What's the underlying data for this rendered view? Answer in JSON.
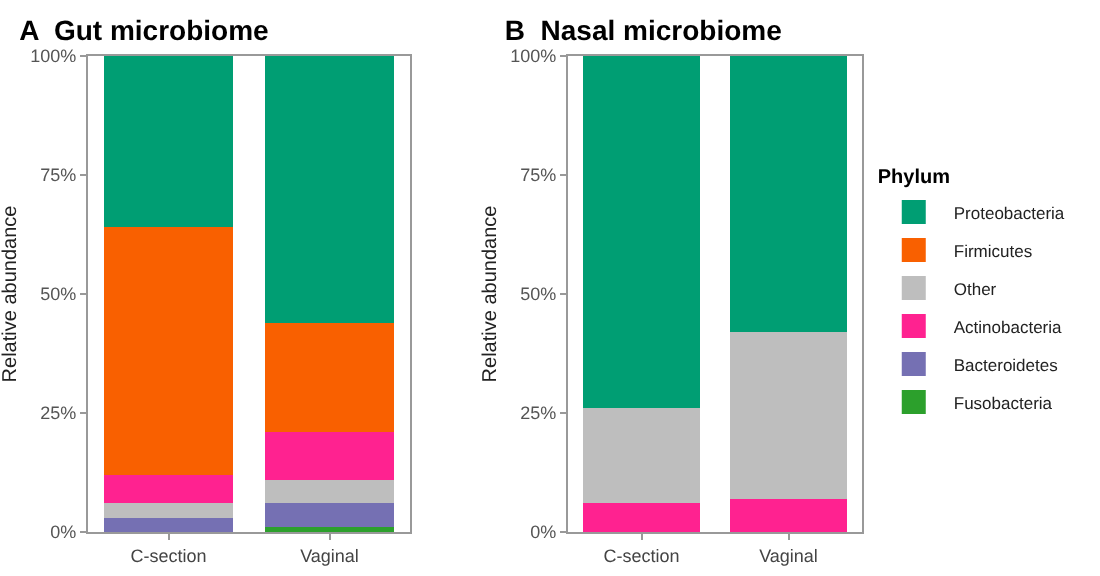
{
  "chart_data": [
    {
      "type": "bar",
      "title": "A  Gut microbiome",
      "ylabel": "Relative abundance",
      "categories": [
        "C-section",
        "Vaginal"
      ],
      "stacked": true,
      "ylim": [
        0,
        100
      ],
      "yticks": [
        {
          "value": 0,
          "label": "0%"
        },
        {
          "value": 25,
          "label": "25%"
        },
        {
          "value": 50,
          "label": "50%"
        },
        {
          "value": 75,
          "label": "75%"
        },
        {
          "value": 100,
          "label": "100%"
        }
      ],
      "grid": false,
      "legend": false,
      "series": [
        {
          "color": "#2ca02c",
          "values": [
            0,
            1
          ]
        },
        {
          "color": "#7570b3",
          "values": [
            3,
            5
          ]
        },
        {
          "color": "#bebebe",
          "values": [
            3,
            5
          ]
        },
        {
          "color": "#ff2290",
          "values": [
            6,
            10
          ]
        },
        {
          "color": "#f96000",
          "values": [
            52,
            23
          ]
        },
        {
          "color": "#009e73",
          "values": [
            36,
            56
          ]
        }
      ]
    },
    {
      "type": "bar",
      "title": "B  Nasal microbiome",
      "ylabel": "Relative abundance",
      "legend_title": "Phylum",
      "categories": [
        "C-section",
        "Vaginal"
      ],
      "stacked": true,
      "ylim": [
        0,
        100
      ],
      "yticks": [
        {
          "value": 0,
          "label": "0%"
        },
        {
          "value": 25,
          "label": "25%"
        },
        {
          "value": 50,
          "label": "50%"
        },
        {
          "value": 75,
          "label": "75%"
        },
        {
          "value": 100,
          "label": "100%"
        }
      ],
      "grid": false,
      "legend": "right",
      "series": [
        {
          "name": "Fusobacteria",
          "color": "#2ca02c",
          "values": [
            0,
            0
          ]
        },
        {
          "name": "Bacteroidetes",
          "color": "#7570b3",
          "values": [
            0,
            0
          ]
        },
        {
          "name": "Actinobacteria",
          "color": "#ff2290",
          "values": [
            6,
            7
          ]
        },
        {
          "name": "Other",
          "color": "#bebebe",
          "values": [
            20,
            35
          ]
        },
        {
          "name": "Firmicutes",
          "color": "#f96000",
          "values": [
            0,
            0
          ]
        },
        {
          "name": "Proteobacteria",
          "color": "#009e73",
          "values": [
            74,
            58
          ]
        }
      ]
    }
  ]
}
